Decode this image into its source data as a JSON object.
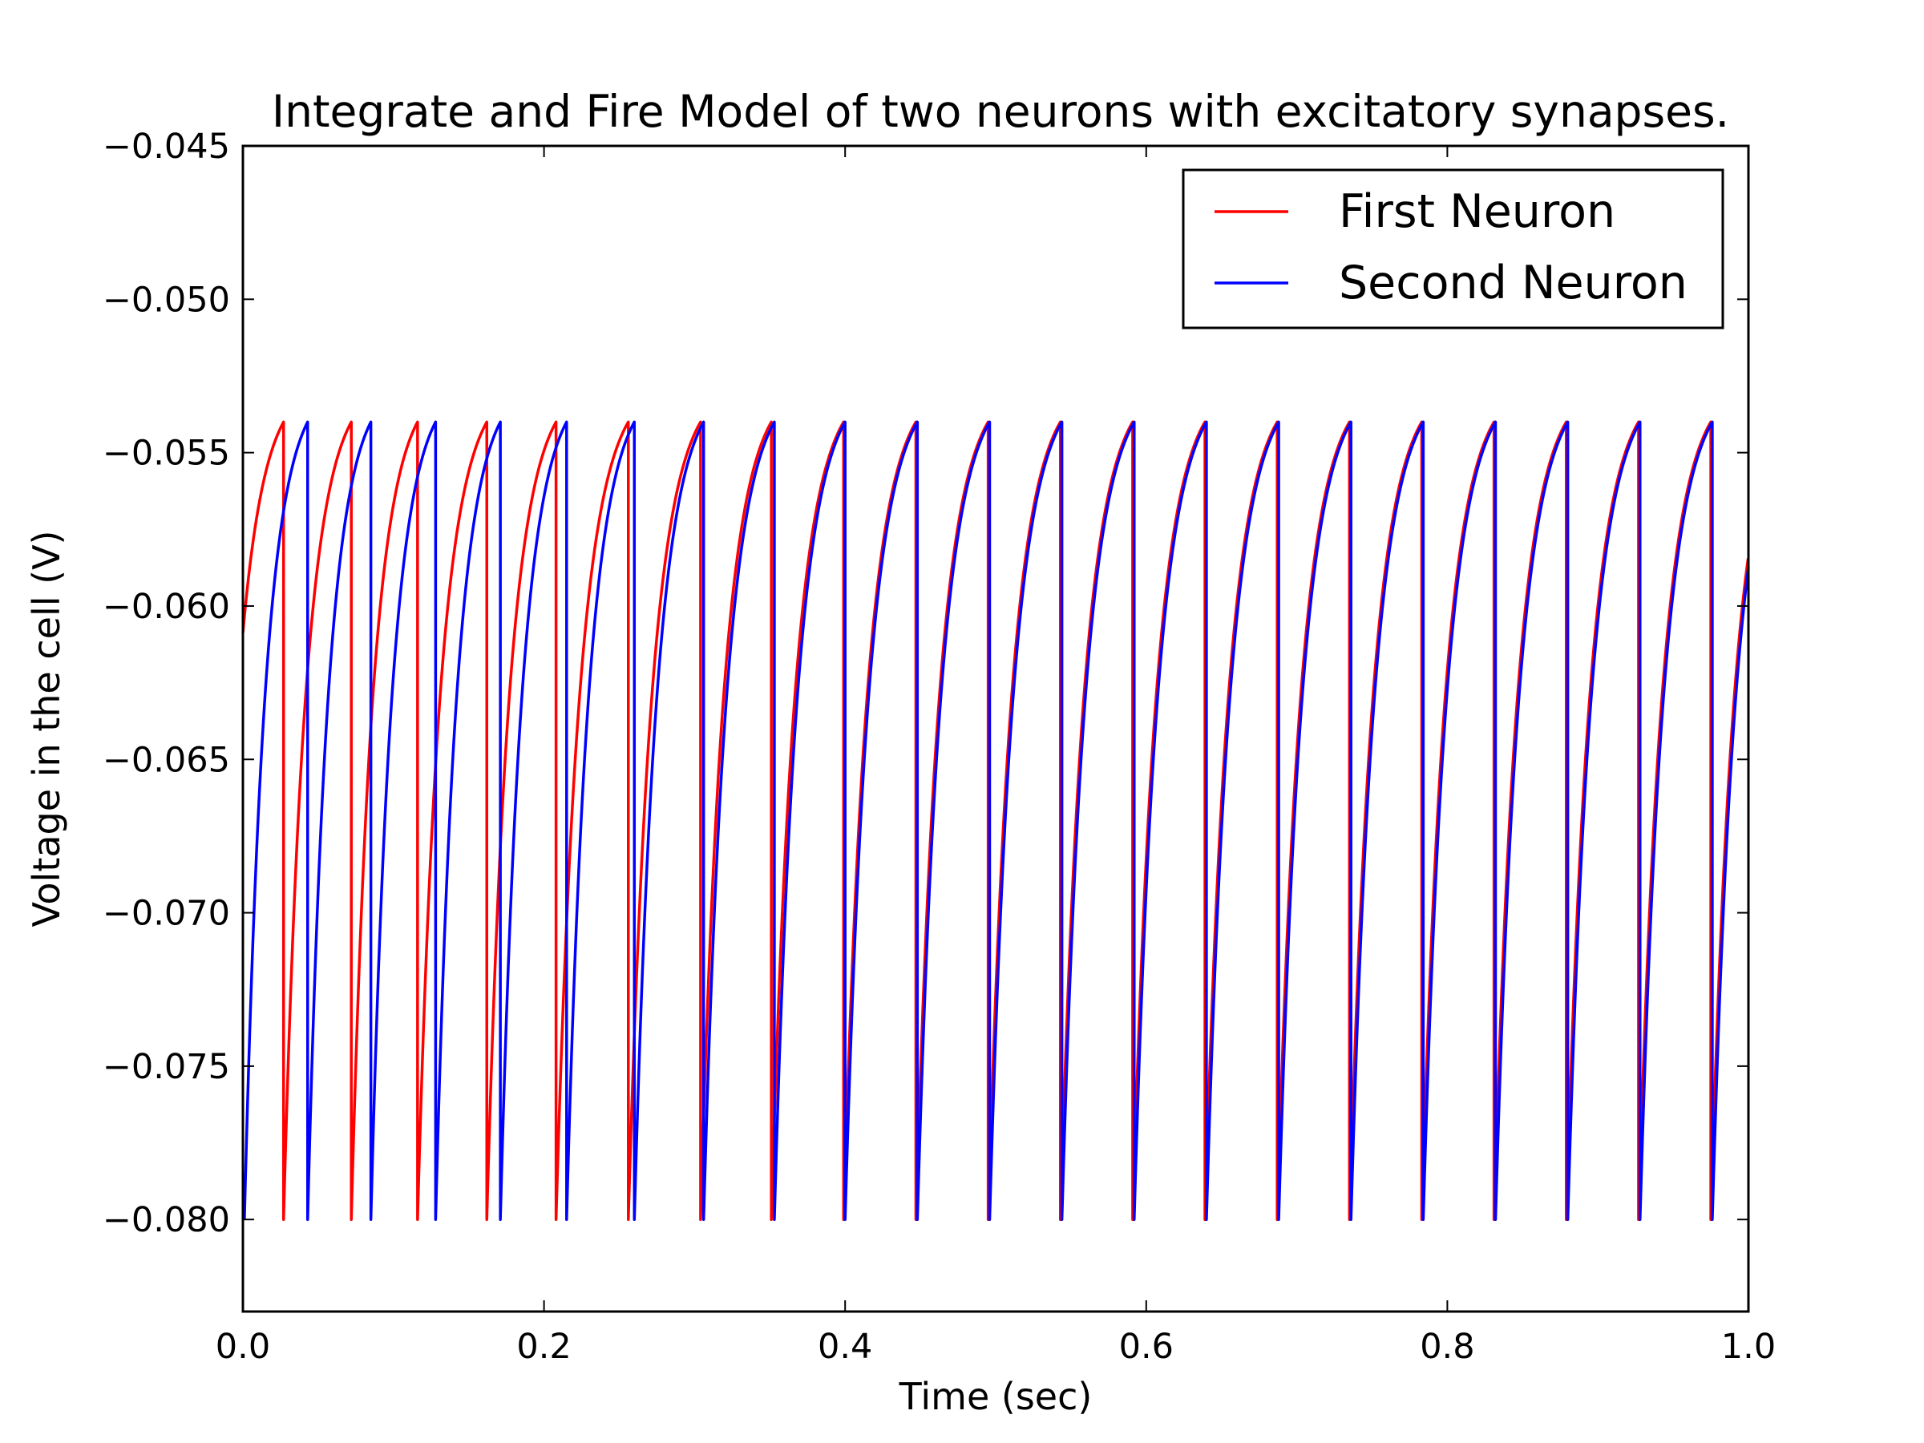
{
  "chart_data": {
    "type": "line",
    "title": "Integrate and Fire Model of two neurons with excitatory synapses.",
    "xlabel": "Time (sec)",
    "ylabel": "Voltage in the cell (V)",
    "xlim": [
      0.0,
      1.0
    ],
    "ylim": [
      -0.083,
      -0.045
    ],
    "x_ticks": [
      0.0,
      0.2,
      0.4,
      0.6,
      0.8,
      1.0
    ],
    "x_tick_labels": [
      "0.0",
      "0.2",
      "0.4",
      "0.6",
      "0.8",
      "1.0"
    ],
    "y_ticks": [
      -0.045,
      -0.05,
      -0.055,
      -0.06,
      -0.065,
      -0.07,
      -0.075,
      -0.08
    ],
    "y_tick_labels": [
      "−0.045",
      "−0.050",
      "−0.055",
      "−0.060",
      "−0.065",
      "−0.070",
      "−0.075",
      "−0.080"
    ],
    "grid": false,
    "legend_position": "top-right",
    "reset_voltage": -0.08,
    "threshold_voltage": -0.054,
    "series": [
      {
        "name": "First Neuron",
        "color": "#ff0000",
        "initial_voltage": -0.0625,
        "final_voltage": -0.0585,
        "spike_times": [
          0.027,
          0.072,
          0.116,
          0.162,
          0.208,
          0.256,
          0.304,
          0.351,
          0.399,
          0.447,
          0.495,
          0.543,
          0.591,
          0.639,
          0.687,
          0.735,
          0.783,
          0.831,
          0.879,
          0.927,
          0.975
        ]
      },
      {
        "name": "Second Neuron",
        "color": "#0000ff",
        "initial_voltage": -0.08,
        "final_voltage": -0.0595,
        "spike_times": [
          0.043,
          0.085,
          0.128,
          0.171,
          0.215,
          0.26,
          0.306,
          0.353,
          0.4,
          0.448,
          0.496,
          0.544,
          0.592,
          0.64,
          0.688,
          0.736,
          0.784,
          0.832,
          0.88,
          0.928,
          0.976
        ]
      }
    ]
  }
}
